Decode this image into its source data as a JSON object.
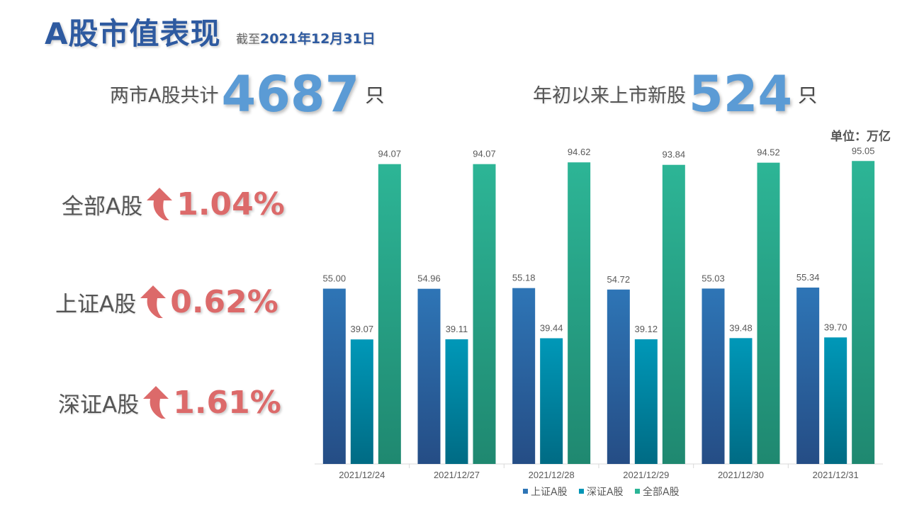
{
  "header": {
    "title": "A股市值表现",
    "subtitle_prefix": "截至",
    "subtitle_date": "2021年12月31日"
  },
  "headlines": {
    "total": {
      "label": "两市A股共计",
      "value": "4687",
      "unit": "只"
    },
    "new": {
      "label": "年初以来上市新股",
      "value": "524",
      "unit": "只"
    }
  },
  "metrics": [
    {
      "label": "全部A股",
      "value": "1.04%",
      "direction": "up"
    },
    {
      "label": "上证A股",
      "value": "0.62%",
      "direction": "up"
    },
    {
      "label": "深证A股",
      "value": "1.61%",
      "direction": "up"
    }
  ],
  "colors": {
    "accent_blue": "#5b9bd5",
    "title_blue": "#2e5aa0",
    "up_red": "#dc6a6a",
    "series_sh": "#2e75b6",
    "series_sz": "#0095b6",
    "series_all": "#2bb596"
  },
  "chart_data": {
    "type": "bar",
    "unit_label": "单位：万亿",
    "categories": [
      "2021/12/24",
      "2021/12/27",
      "2021/12/28",
      "2021/12/29",
      "2021/12/30",
      "2021/12/31"
    ],
    "series": [
      {
        "name": "上证A股",
        "values": [
          55.0,
          54.96,
          55.18,
          54.72,
          55.03,
          55.34
        ],
        "labels": [
          "55.00",
          "54.96",
          "55.18",
          "54.72",
          "55.03",
          "55.34"
        ]
      },
      {
        "name": "深证A股",
        "values": [
          39.07,
          39.11,
          39.44,
          39.12,
          39.48,
          39.7
        ],
        "labels": [
          "39.07",
          "39.11",
          "39.44",
          "39.12",
          "39.48",
          "39.70"
        ]
      },
      {
        "name": "全部A股",
        "values": [
          94.07,
          94.07,
          94.62,
          93.84,
          94.52,
          95.05
        ],
        "labels": [
          "94.07",
          "94.07",
          "94.62",
          "93.84",
          "94.52",
          "95.05"
        ]
      }
    ],
    "ylim": [
      0,
      100
    ],
    "legend": "bottom",
    "grid": false
  }
}
